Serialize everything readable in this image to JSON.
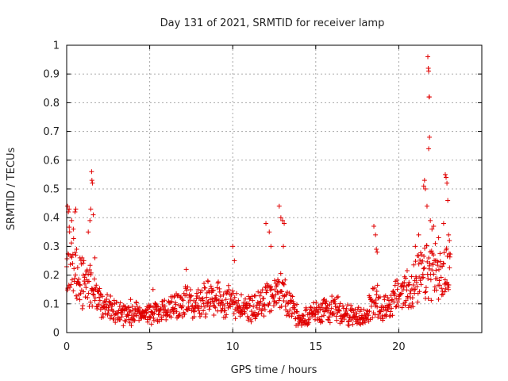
{
  "chart_data": {
    "type": "scatter",
    "title": "Day 131 of 2021, SRMTID for receiver lamp",
    "xlabel": "GPS time / hours",
    "ylabel": "SRMTID / TECUs",
    "xlim": [
      0,
      25
    ],
    "ylim": [
      0,
      1
    ],
    "xticks": [
      "0",
      "5",
      "10",
      "15",
      "20"
    ],
    "yticks": [
      "0",
      "0.1",
      "0.2",
      "0.3",
      "0.4",
      "0.5",
      "0.6",
      "0.7",
      "0.8",
      "0.9",
      "1"
    ],
    "grid": true,
    "marker": "+",
    "series_color": "#e00000",
    "baseline": [
      [
        0,
        0.26
      ],
      [
        0.3,
        0.25
      ],
      [
        0.7,
        0.2
      ],
      [
        1.0,
        0.17
      ],
      [
        1.5,
        0.15
      ],
      [
        2.0,
        0.1
      ],
      [
        3.0,
        0.07
      ],
      [
        4.0,
        0.07
      ],
      [
        5.0,
        0.06
      ],
      [
        6.0,
        0.08
      ],
      [
        7.0,
        0.1
      ],
      [
        8.0,
        0.11
      ],
      [
        9.0,
        0.12
      ],
      [
        10.0,
        0.1
      ],
      [
        11.0,
        0.08
      ],
      [
        12.0,
        0.11
      ],
      [
        13.0,
        0.14
      ],
      [
        14.0,
        0.05
      ],
      [
        15.0,
        0.07
      ],
      [
        16.0,
        0.09
      ],
      [
        17.0,
        0.06
      ],
      [
        18.0,
        0.05
      ],
      [
        18.5,
        0.12
      ],
      [
        19.0,
        0.08
      ],
      [
        20.0,
        0.13
      ],
      [
        21.0,
        0.17
      ],
      [
        21.5,
        0.2
      ],
      [
        22.0,
        0.22
      ],
      [
        22.5,
        0.18
      ],
      [
        23.0,
        0.22
      ]
    ],
    "highlights": [
      [
        0.05,
        0.44
      ],
      [
        0.1,
        0.42
      ],
      [
        0.15,
        0.43
      ],
      [
        0.3,
        0.39
      ],
      [
        0.4,
        0.36
      ],
      [
        0.5,
        0.42
      ],
      [
        0.55,
        0.43
      ],
      [
        0.6,
        0.29
      ],
      [
        0.8,
        0.26
      ],
      [
        1.0,
        0.2
      ],
      [
        1.3,
        0.35
      ],
      [
        1.4,
        0.39
      ],
      [
        1.45,
        0.43
      ],
      [
        1.5,
        0.56
      ],
      [
        1.52,
        0.53
      ],
      [
        1.55,
        0.52
      ],
      [
        1.6,
        0.41
      ],
      [
        1.7,
        0.26
      ],
      [
        5.2,
        0.15
      ],
      [
        7.2,
        0.22
      ],
      [
        8.5,
        0.18
      ],
      [
        10.0,
        0.3
      ],
      [
        10.1,
        0.25
      ],
      [
        12.0,
        0.38
      ],
      [
        12.2,
        0.35
      ],
      [
        12.3,
        0.3
      ],
      [
        12.8,
        0.44
      ],
      [
        12.9,
        0.4
      ],
      [
        13.0,
        0.39
      ],
      [
        13.1,
        0.38
      ],
      [
        13.05,
        0.3
      ],
      [
        18.5,
        0.37
      ],
      [
        18.6,
        0.34
      ],
      [
        18.65,
        0.29
      ],
      [
        18.7,
        0.28
      ],
      [
        21.0,
        0.3
      ],
      [
        21.2,
        0.34
      ],
      [
        21.5,
        0.51
      ],
      [
        21.55,
        0.53
      ],
      [
        21.6,
        0.5
      ],
      [
        21.7,
        0.44
      ],
      [
        21.75,
        0.96
      ],
      [
        21.78,
        0.92
      ],
      [
        21.8,
        0.91
      ],
      [
        21.82,
        0.82
      ],
      [
        21.84,
        0.82
      ],
      [
        21.85,
        0.68
      ],
      [
        21.8,
        0.64
      ],
      [
        21.9,
        0.39
      ],
      [
        22.0,
        0.36
      ],
      [
        22.1,
        0.37
      ],
      [
        22.2,
        0.31
      ],
      [
        22.4,
        0.33
      ],
      [
        22.8,
        0.55
      ],
      [
        22.85,
        0.54
      ],
      [
        22.9,
        0.52
      ],
      [
        22.95,
        0.46
      ],
      [
        22.7,
        0.38
      ],
      [
        23.0,
        0.34
      ],
      [
        23.05,
        0.32
      ]
    ]
  }
}
